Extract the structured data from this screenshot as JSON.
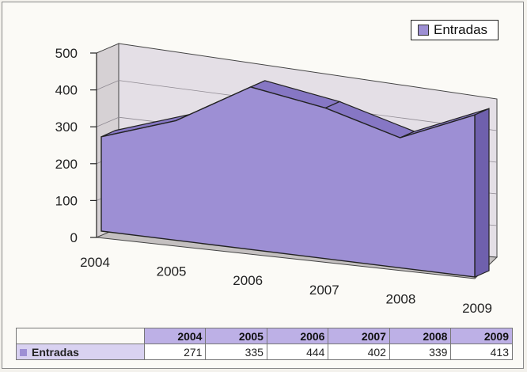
{
  "chart_data": {
    "type": "area",
    "series": [
      {
        "name": "Entradas",
        "values": [
          271,
          335,
          444,
          402,
          339,
          413
        ]
      }
    ],
    "categories": [
      "2004",
      "2005",
      "2006",
      "2007",
      "2008",
      "2009"
    ],
    "yticks": [
      "0",
      "100",
      "200",
      "300",
      "400",
      "500"
    ],
    "ylim": [
      0,
      500
    ],
    "legend": "top-right",
    "grid": true,
    "colors": {
      "area": "#9d8fd4",
      "area_top": "#8677c4",
      "wall": "#e6e1ea",
      "floor": "#c9c6c6"
    }
  },
  "table": {
    "row_label": "Entradas",
    "headers": [
      "2004",
      "2005",
      "2006",
      "2007",
      "2008",
      "2009"
    ],
    "values": [
      "271",
      "335",
      "444",
      "402",
      "339",
      "413"
    ]
  }
}
